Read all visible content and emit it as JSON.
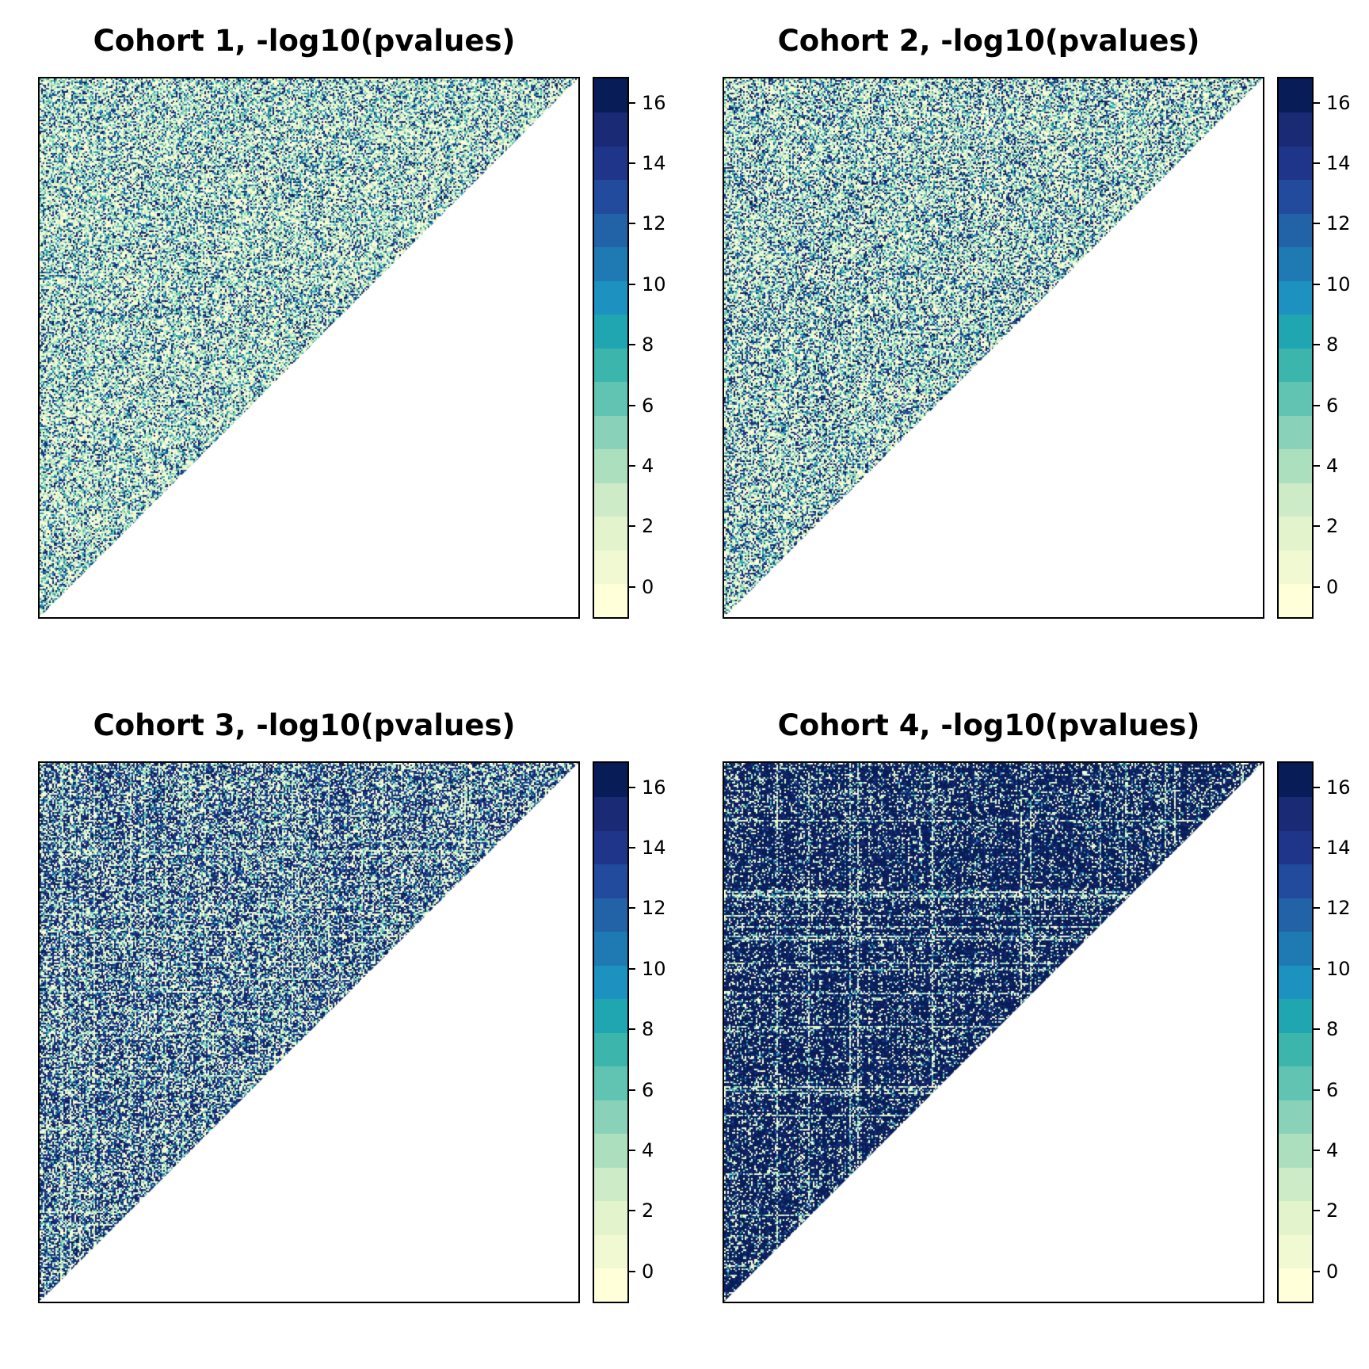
{
  "chart_data": [
    {
      "type": "heatmap",
      "title": "Cohort 1, -log10(pvalues)",
      "shape": "upper-triangle",
      "colorbar": {
        "range": [
          -1,
          16.8
        ],
        "ticks": [
          0,
          2,
          4,
          6,
          8,
          10,
          12,
          14,
          16
        ]
      },
      "seed": 11,
      "density": 0.12
    },
    {
      "type": "heatmap",
      "title": "Cohort 2, -log10(pvalues)",
      "shape": "upper-triangle",
      "colorbar": {
        "range": [
          -1,
          16.8
        ],
        "ticks": [
          0,
          2,
          4,
          6,
          8,
          10,
          12,
          14,
          16
        ]
      },
      "seed": 23,
      "density": 0.18
    },
    {
      "type": "heatmap",
      "title": "Cohort 3, -log10(pvalues)",
      "shape": "upper-triangle",
      "colorbar": {
        "range": [
          -1,
          16.8
        ],
        "ticks": [
          0,
          2,
          4,
          6,
          8,
          10,
          12,
          14,
          16
        ]
      },
      "seed": 37,
      "density": 0.55
    },
    {
      "type": "heatmap",
      "title": "Cohort 4, -log10(pvalues)",
      "shape": "upper-triangle",
      "colorbar": {
        "range": [
          -1,
          16.8
        ],
        "ticks": [
          0,
          2,
          4,
          6,
          8,
          10,
          12,
          14,
          16
        ]
      },
      "seed": 53,
      "density": 0.92
    }
  ],
  "colors": [
    "#ffffd9",
    "#f1f9d2",
    "#e3f4cc",
    "#ccebc6",
    "#acdfbe",
    "#89d1b9",
    "#61c4b3",
    "#3cb5ad",
    "#20a6b0",
    "#1d91c0",
    "#1f7ab3",
    "#2163a6",
    "#234b9d",
    "#1e358a",
    "#1a2a75",
    "#081d58"
  ]
}
